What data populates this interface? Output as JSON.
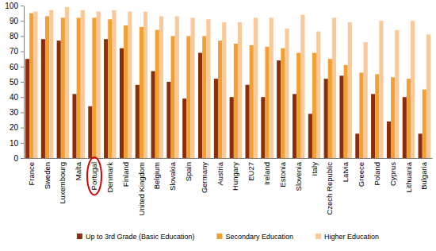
{
  "chart_data": {
    "type": "bar",
    "categories": [
      "France",
      "Sweden",
      "Luxembourg",
      "Malta",
      "Portugal",
      "Denmark",
      "Finland",
      "United Kingdom",
      "Belgium",
      "Slovakia",
      "Spain",
      "Germany",
      "Austria",
      "Hungary",
      "EU27",
      "Ireland",
      "Estonia",
      "Slovenia",
      "Italy",
      "Czech Republic",
      "Latvia",
      "Greece",
      "Poland",
      "Cyprus",
      "Lithuania",
      "Bulgaria"
    ],
    "series": [
      {
        "name": "Up to 3rd Grade (Basic Education)",
        "color": "#8b2e0b",
        "values": [
          65,
          78,
          77,
          42,
          34,
          78,
          72,
          48,
          57,
          50,
          39,
          69,
          52,
          40,
          48,
          40,
          64,
          42,
          29,
          52,
          54,
          16,
          42,
          24,
          40,
          16
        ]
      },
      {
        "name": "Secondary Education",
        "color": "#f4a030",
        "values": [
          95,
          93,
          92,
          92,
          92,
          91,
          87,
          86,
          84,
          80,
          80,
          80,
          77,
          75,
          74,
          73,
          72,
          69,
          69,
          65,
          61,
          56,
          55,
          53,
          52,
          45
        ]
      },
      {
        "name": "Higher Education",
        "color": "#f9c99a",
        "values": [
          96,
          97,
          99,
          97,
          96,
          97,
          96,
          96,
          93,
          93,
          92,
          91,
          89,
          89,
          92,
          92,
          85,
          94,
          83,
          92,
          89,
          76,
          90,
          84,
          90,
          81
        ]
      }
    ],
    "ylim": [
      0,
      100
    ],
    "yticks": [
      0,
      10,
      20,
      30,
      40,
      50,
      60,
      70,
      80,
      90,
      100
    ],
    "grid": false,
    "legend": "bottom"
  }
}
